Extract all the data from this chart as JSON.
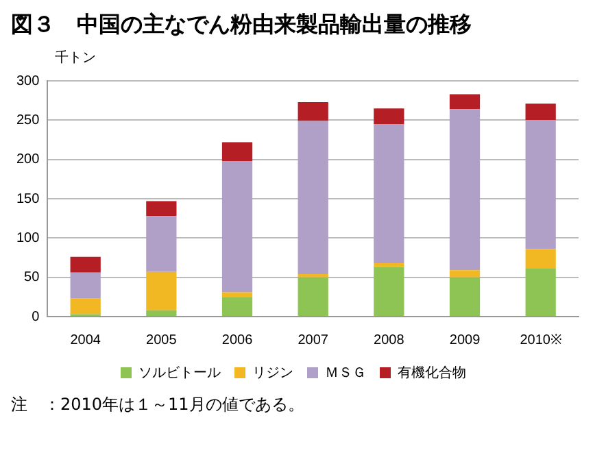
{
  "chart_data": {
    "type": "bar",
    "title": "図３　中国の主なでん粉由来製品輸出量の推移",
    "ylabel": "千トン",
    "categories": [
      "2004",
      "2005",
      "2006",
      "2007",
      "2008",
      "2009",
      "2010※"
    ],
    "series": [
      {
        "name": "ソルビトール",
        "color": "#8dc453",
        "values": [
          3,
          8,
          25,
          50,
          63,
          50,
          61
        ]
      },
      {
        "name": "リジン",
        "color": "#f2b824",
        "values": [
          20,
          49,
          6,
          4,
          5,
          9,
          25
        ]
      },
      {
        "name": "ＭＳＧ",
        "color": "#b09fc6",
        "values": [
          33,
          71,
          167,
          195,
          177,
          205,
          164
        ]
      },
      {
        "name": "有機化合物",
        "color": "#b51e24",
        "values": [
          20,
          19,
          24,
          24,
          20,
          19,
          21
        ]
      }
    ],
    "stacked": true,
    "ylim": [
      0,
      300
    ],
    "yticks": [
      0,
      50,
      100,
      150,
      200,
      250,
      300
    ],
    "grid": "y",
    "legend": "bottom",
    "annotations": [
      "注　：2010年は１～11月の値である。"
    ]
  }
}
